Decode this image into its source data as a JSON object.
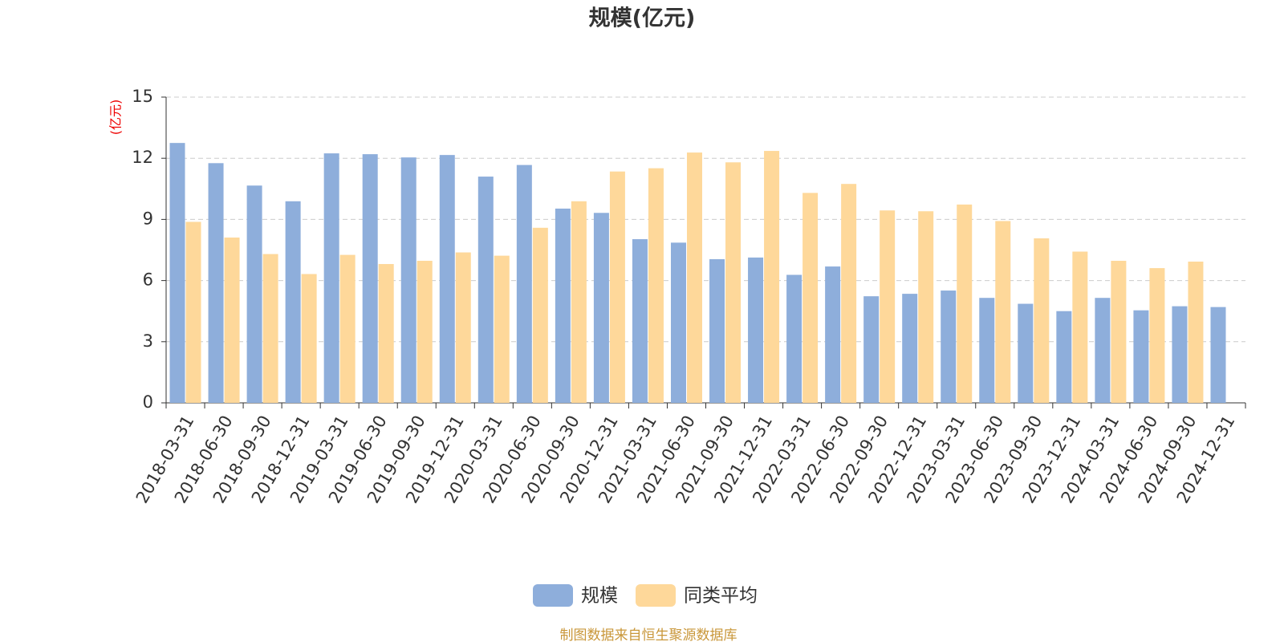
{
  "chart_data": {
    "type": "bar",
    "title": "规模(亿元)",
    "y_unit": "(亿元)",
    "categories": [
      "2018-03-31",
      "2018-06-30",
      "2018-09-30",
      "2018-12-31",
      "2019-03-31",
      "2019-06-30",
      "2019-09-30",
      "2019-12-31",
      "2020-03-31",
      "2020-06-30",
      "2020-09-30",
      "2020-12-31",
      "2021-03-31",
      "2021-06-30",
      "2021-09-30",
      "2021-12-31",
      "2022-03-31",
      "2022-06-30",
      "2022-09-30",
      "2022-12-31",
      "2023-03-31",
      "2023-06-30",
      "2023-09-30",
      "2023-12-31",
      "2024-03-31",
      "2024-06-30",
      "2024-09-30",
      "2024-12-31"
    ],
    "series": [
      {
        "name": "规模",
        "color": "#8eaedb",
        "values": [
          12.75,
          11.76,
          10.66,
          9.89,
          12.24,
          12.2,
          12.04,
          12.16,
          11.1,
          11.67,
          9.53,
          9.32,
          8.03,
          7.86,
          7.05,
          7.13,
          6.28,
          6.69,
          5.23,
          5.35,
          5.51,
          5.15,
          4.86,
          4.5,
          5.15,
          4.54,
          4.74,
          4.7
        ]
      },
      {
        "name": "同类平均",
        "color": "#fed89a",
        "values": [
          8.88,
          8.11,
          7.3,
          6.32,
          7.26,
          6.81,
          6.97,
          7.38,
          7.22,
          8.59,
          9.89,
          11.35,
          11.51,
          12.28,
          11.8,
          12.36,
          10.3,
          10.74,
          9.44,
          9.4,
          9.73,
          8.92,
          8.07,
          7.42,
          6.97,
          6.61,
          6.93,
          null
        ]
      }
    ],
    "ylim": [
      0,
      15
    ],
    "yticks": [
      0,
      3,
      6,
      9,
      12,
      15
    ],
    "grid": true,
    "source": "制图数据来自恒生聚源数据库"
  }
}
